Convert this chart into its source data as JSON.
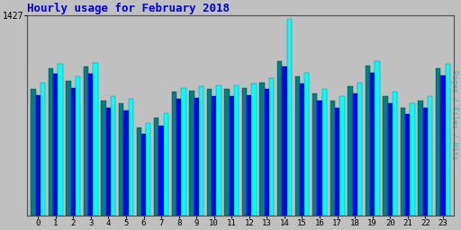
{
  "title": "Hourly usage for February 2018",
  "title_color": "#0000dd",
  "title_fontsize": 9,
  "background_color": "#c0c0c0",
  "plot_bg_color": "#c0c0c0",
  "ylabel_right": "Pages / Files / Hits",
  "ylabel_right_color": "#00cccc",
  "ytick_label": "1427",
  "hours": [
    0,
    1,
    2,
    3,
    4,
    5,
    6,
    7,
    8,
    9,
    10,
    11,
    12,
    13,
    14,
    15,
    16,
    17,
    18,
    19,
    20,
    21,
    22,
    23
  ],
  "pages": [
    900,
    1050,
    960,
    1060,
    820,
    800,
    630,
    700,
    880,
    890,
    900,
    900,
    910,
    950,
    1100,
    990,
    870,
    820,
    920,
    1070,
    850,
    770,
    820,
    1050
  ],
  "files": [
    860,
    1010,
    910,
    1010,
    770,
    750,
    580,
    640,
    830,
    840,
    850,
    850,
    860,
    900,
    1060,
    940,
    820,
    770,
    870,
    1020,
    800,
    720,
    770,
    1000
  ],
  "hits": [
    950,
    1080,
    990,
    1090,
    850,
    830,
    660,
    730,
    910,
    920,
    930,
    930,
    940,
    980,
    1400,
    1020,
    900,
    850,
    950,
    1100,
    880,
    800,
    850,
    1080
  ],
  "pages_color": "#008080",
  "files_color": "#0000ff",
  "hits_color": "#00ffff",
  "ylim": [
    0,
    1427
  ],
  "bar_width": 0.27,
  "font_family": "monospace"
}
